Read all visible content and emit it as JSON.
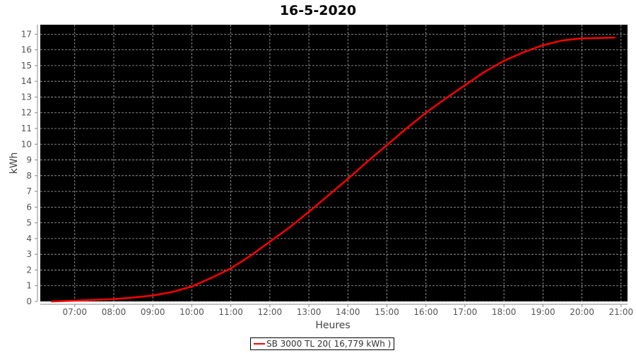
{
  "chart_data": {
    "type": "line",
    "title": "16-5-2020",
    "xlabel": "Heures",
    "ylabel": "kWh",
    "xlim": [
      "06:07",
      "21:10"
    ],
    "ylim": [
      0,
      17.6
    ],
    "x_ticks": [
      "07:00",
      "08:00",
      "09:00",
      "10:00",
      "11:00",
      "12:00",
      "13:00",
      "14:00",
      "15:00",
      "16:00",
      "17:00",
      "18:00",
      "19:00",
      "20:00",
      "21:00"
    ],
    "y_ticks": [
      0,
      1,
      2,
      3,
      4,
      5,
      6,
      7,
      8,
      9,
      10,
      11,
      12,
      13,
      14,
      15,
      16,
      17
    ],
    "grid": true,
    "background": "#000000",
    "legend_position": "bottom",
    "series": [
      {
        "name": "SB 3000 TL 20( 16,779 kWh )",
        "color": "#ff0000",
        "x": [
          "06:25",
          "07:00",
          "07:30",
          "08:00",
          "08:30",
          "09:00",
          "09:30",
          "10:00",
          "10:30",
          "11:00",
          "11:30",
          "12:00",
          "12:30",
          "13:00",
          "13:30",
          "14:00",
          "14:30",
          "15:00",
          "15:30",
          "16:00",
          "16:30",
          "17:00",
          "17:30",
          "18:00",
          "18:30",
          "19:00",
          "19:30",
          "20:00",
          "20:30",
          "20:50"
        ],
        "y": [
          0,
          0.05,
          0.1,
          0.15,
          0.25,
          0.38,
          0.6,
          0.95,
          1.5,
          2.1,
          2.9,
          3.8,
          4.7,
          5.7,
          6.75,
          7.8,
          8.9,
          9.95,
          11.0,
          12.0,
          12.9,
          13.75,
          14.6,
          15.3,
          15.85,
          16.3,
          16.6,
          16.73,
          16.76,
          16.78
        ]
      }
    ]
  }
}
